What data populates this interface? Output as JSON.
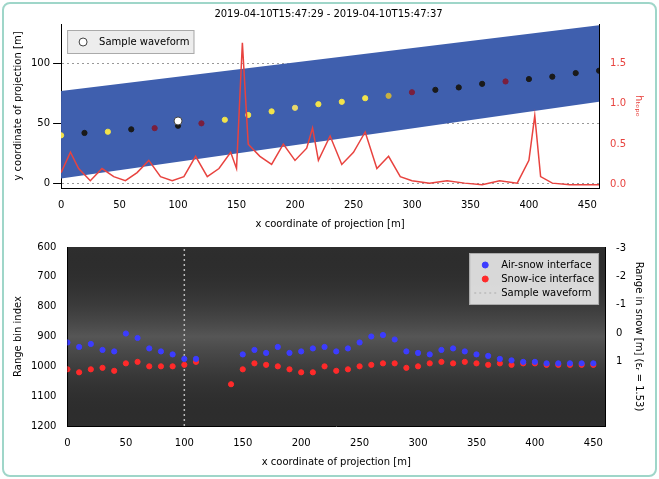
{
  "chart_data": [
    {
      "type": "scatter",
      "title": "2019-04-10T15:47:29 - 2019-04-10T15:47:37",
      "x_label": "x coordinate of projection [m]",
      "y_label": "y coordinate of projection [m]",
      "y2_label": "hₜₒₚₒ",
      "xlim": [
        0,
        460
      ],
      "xticks": [
        0,
        50,
        100,
        150,
        200,
        250,
        300,
        350,
        400,
        450
      ],
      "ylim": [
        -4,
        133
      ],
      "yticks": [
        0,
        50,
        100
      ],
      "y2lim": [
        -0.04,
        1.98
      ],
      "y2ticks": [
        {
          "value": 0,
          "label": "0.0"
        },
        {
          "value": 0.5,
          "label": "0.5"
        },
        {
          "value": 1,
          "label": "1.0"
        },
        {
          "value": 1.5,
          "label": "1.5"
        }
      ],
      "grid": true,
      "legend": "upper left",
      "swath": {
        "x": [
          0,
          460
        ],
        "lower": [
          4,
          68
        ],
        "upper": [
          77,
          132
        ],
        "color": "#3f5fae"
      },
      "series": [
        {
          "name": "Sample waveform",
          "type": "scatter",
          "marker": "circle",
          "line_style": "none",
          "color": "#ffffff",
          "x": [
            100
          ],
          "values": [
            52
          ]
        },
        {
          "type": "scatter",
          "marker": "circle",
          "line_style": "none",
          "colors": [
            "#f2e34b",
            "#1a1a1a",
            "#f2e34b",
            "#1a1a1a",
            "#7a1f3d",
            "#1a1a1a",
            "#7a1f3d",
            "#f2e34b",
            "#f2e34b",
            "#f2e34b",
            "#e8d86a",
            "#f2e34b",
            "#f2e34b",
            "#f2e34b",
            "#c8b040",
            "#7a1f3d",
            "#1a1a1a",
            "#1a1a1a",
            "#1a1a1a",
            "#7a1f3d",
            "#1a1a1a",
            "#1a1a1a",
            "#1a1a1a",
            "#1a1a1a"
          ],
          "x": [
            0,
            20,
            40,
            60,
            80,
            100,
            120,
            140,
            160,
            180,
            200,
            220,
            240,
            260,
            280,
            300,
            320,
            340,
            360,
            380,
            400,
            420,
            440,
            460
          ],
          "values": [
            40,
            42,
            43,
            45,
            46,
            48,
            50,
            53,
            57,
            60,
            63,
            66,
            68,
            71,
            73,
            76,
            78,
            80,
            83,
            85,
            87,
            89,
            92,
            94
          ]
        },
        {
          "type": "line",
          "axis": "y2",
          "color": "#e8433f",
          "line_style": "solid",
          "marker": "none",
          "x": [
            0,
            8,
            15,
            25,
            35,
            45,
            55,
            65,
            75,
            85,
            95,
            105,
            115,
            125,
            135,
            145,
            150,
            155,
            160,
            170,
            180,
            190,
            200,
            210,
            215,
            220,
            230,
            240,
            250,
            260,
            270,
            280,
            290,
            300,
            315,
            330,
            345,
            360,
            375,
            390,
            400,
            405,
            410,
            420,
            435,
            450,
            460
          ],
          "values": [
            0.15,
            0.4,
            0.2,
            0.05,
            0.2,
            0.1,
            0.05,
            0.15,
            0.3,
            0.1,
            0.05,
            0.1,
            0.35,
            0.1,
            0.2,
            0.4,
            0.2,
            1.75,
            0.5,
            0.35,
            0.25,
            0.5,
            0.3,
            0.45,
            0.7,
            0.3,
            0.6,
            0.25,
            0.4,
            0.65,
            0.2,
            0.35,
            0.1,
            0.05,
            0.02,
            0.05,
            0.02,
            0.0,
            0.05,
            0.02,
            0.3,
            0.85,
            0.1,
            0.02,
            0.0,
            0.0,
            0.0
          ]
        }
      ]
    },
    {
      "type": "scatter",
      "x_label": "x coordinate of projection [m]",
      "y_label": "Range bin index",
      "y2_label": "Range in snow [m] (εᵣ = 1.53)",
      "xlim": [
        0,
        460
      ],
      "xticks": [
        0,
        50,
        100,
        150,
        200,
        250,
        300,
        350,
        400,
        450
      ],
      "ylim": [
        1200,
        600
      ],
      "yticks": [
        600,
        700,
        800,
        900,
        1000,
        1100,
        1200
      ],
      "y2lim": [
        3.3,
        -3.05
      ],
      "y2ticks": [
        -3,
        -2,
        -1,
        0,
        1
      ],
      "grid": false,
      "legend": "upper right",
      "x": [
        0,
        10,
        20,
        30,
        40,
        50,
        60,
        70,
        80,
        90,
        100,
        110,
        120,
        130,
        140,
        150,
        160,
        170,
        180,
        190,
        200,
        210,
        220,
        230,
        240,
        250,
        260,
        270,
        280,
        290,
        300,
        310,
        320,
        330,
        340,
        350,
        360,
        370,
        380,
        390,
        400,
        410,
        420,
        430,
        440,
        450
      ],
      "series": [
        {
          "name": "Air-snow interface",
          "type": "scatter",
          "marker": "circle",
          "line_style": "none",
          "color": "#3c3cff",
          "values": [
            920,
            935,
            925,
            945,
            950,
            890,
            905,
            940,
            950,
            960,
            975,
            975,
            null,
            null,
            null,
            960,
            945,
            955,
            935,
            955,
            950,
            940,
            935,
            950,
            940,
            920,
            900,
            895,
            910,
            950,
            955,
            960,
            945,
            940,
            950,
            960,
            965,
            975,
            980,
            985,
            985,
            990,
            990,
            990,
            990,
            990
          ]
        },
        {
          "name": "Snow-ice interface",
          "type": "scatter",
          "marker": "circle",
          "line_style": "none",
          "color": "#ff2a2a",
          "values": [
            1010,
            1020,
            1010,
            1005,
            1015,
            990,
            985,
            1000,
            1000,
            1000,
            995,
            985,
            null,
            null,
            1060,
            1010,
            990,
            995,
            1000,
            1010,
            1020,
            1020,
            1000,
            1015,
            1010,
            1000,
            995,
            990,
            990,
            1005,
            1000,
            990,
            985,
            990,
            985,
            990,
            995,
            990,
            995,
            990,
            990,
            995,
            995,
            995,
            995,
            995
          ]
        },
        {
          "name": "Sample waveform",
          "type": "line",
          "marker": "none",
          "line_style": "dotted",
          "color": "#bbbbbb",
          "x": [
            100,
            100
          ],
          "values": [
            1200,
            600
          ]
        }
      ]
    }
  ]
}
